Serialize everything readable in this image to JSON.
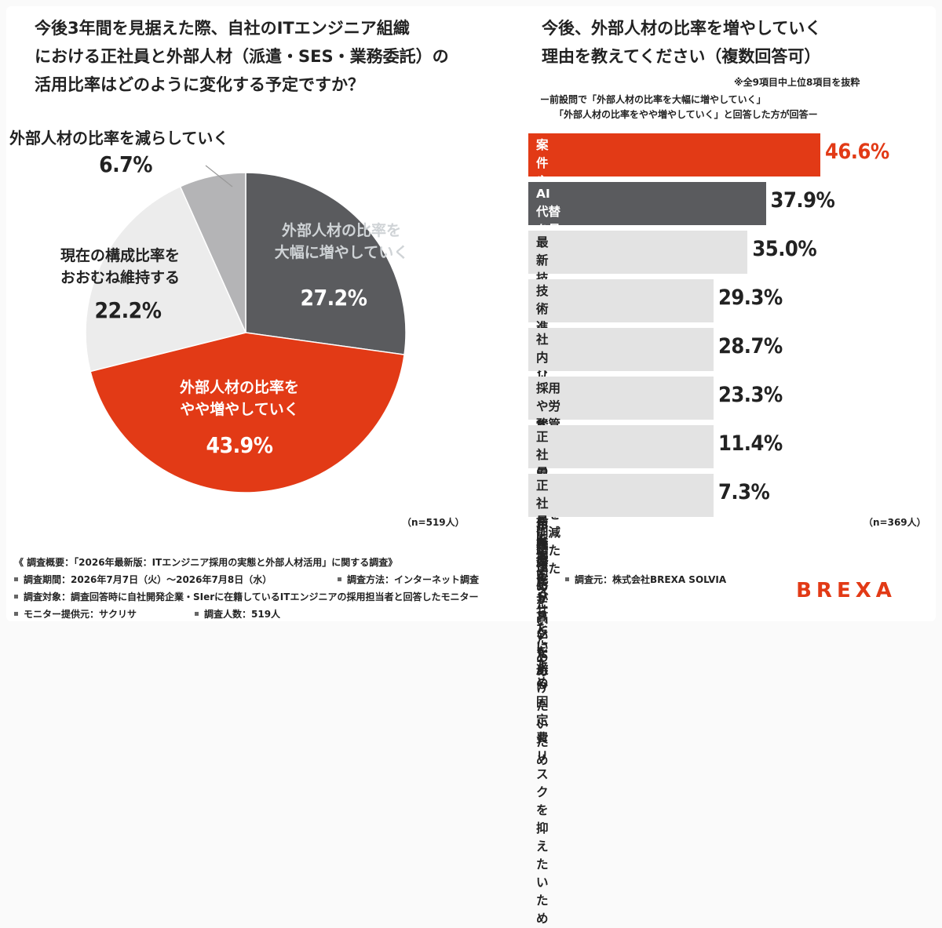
{
  "left_title": "今後3年間を見据えた際、自社のITエンジニア組織\nにおける正社員と外部人材（派遣・SES・業務委託）の\n活用比率はどのように変化する予定ですか？",
  "right_title": "今後、外部人材の比率を増やしていく\n理由を教えてください（複数回答可）",
  "notes": {
    "top": "※全9項目中上位8項目を抜粋",
    "line1": "ー前設問で「外部人材の比率を大幅に増やしていく」",
    "line2": "「外部人材の比率をやや増やしていく」と回答した方が回答ー"
  },
  "colors": {
    "red": "#e23a16",
    "dark": "#5a5b5e",
    "gray": "#b4b4b6",
    "light": "#ececec",
    "bar_light": "#e3e3e3"
  },
  "chart_data": [
    {
      "type": "pie",
      "slices": [
        {
          "label": "外部人材の比率を\n大幅に増やしていく",
          "value": 27.2,
          "display": "27.2%"
        },
        {
          "label": "外部人材の比率を\nやや増やしていく",
          "value": 43.9,
          "display": "43.9%"
        },
        {
          "label": "現在の構成比率を\nおおむね維持する",
          "value": 22.2,
          "display": "22.2%"
        },
        {
          "label": "外部人材の比率を減らしていく",
          "value": 6.7,
          "display": "6.7%"
        }
      ],
      "sample": "（n=519人）"
    },
    {
      "type": "bar",
      "orientation": "horizontal",
      "categories": [
        "案件やプロジェクト状況に合わせて\n柔軟に人員調整したいため",
        "AI代替を見据え、人員構成を\n最適化したいため",
        "最新技術や特定スキルを\nスピーディに調達したいため",
        "技術進化による正社員の\nスキル陳腐化リスクを避けたいため",
        "社内リソースをコア業務に\n集中させたいため",
        "採用や労務管理の工数・\nコストを削減したいため",
        "正社員の\n採用難易度が高いため",
        "正社員を抱えることによる\n固定費リスクを抑えたいため"
      ],
      "values": [
        46.6,
        37.9,
        35.0,
        29.3,
        28.7,
        23.3,
        11.4,
        7.3
      ],
      "labels": [
        "46.6%",
        "37.9%",
        "35.0%",
        "29.3%",
        "28.7%",
        "23.3%",
        "11.4%",
        "7.3%"
      ],
      "sample": "（n=369人）"
    }
  ],
  "footer": {
    "summary": "《 調査概要：「2026年最新版：ITエンジニア採用の実態と外部人材活用」に関する調査》",
    "period": "調査期間：2026年7月7日（火）～2026年7月8日（水）",
    "method": "調査方法：インターネット調査",
    "source": "調査元：株式会社BREXA SOLVIA",
    "target": "調査対象：調査回答時に自社開発企業・SIerに在籍しているITエンジニアの採用担当者と回答したモニター",
    "provider": "モニター提供元：サクリサ",
    "count": "調査人数：519人"
  },
  "logo": {
    "text": "BREXA",
    "color": "#e23a16"
  }
}
